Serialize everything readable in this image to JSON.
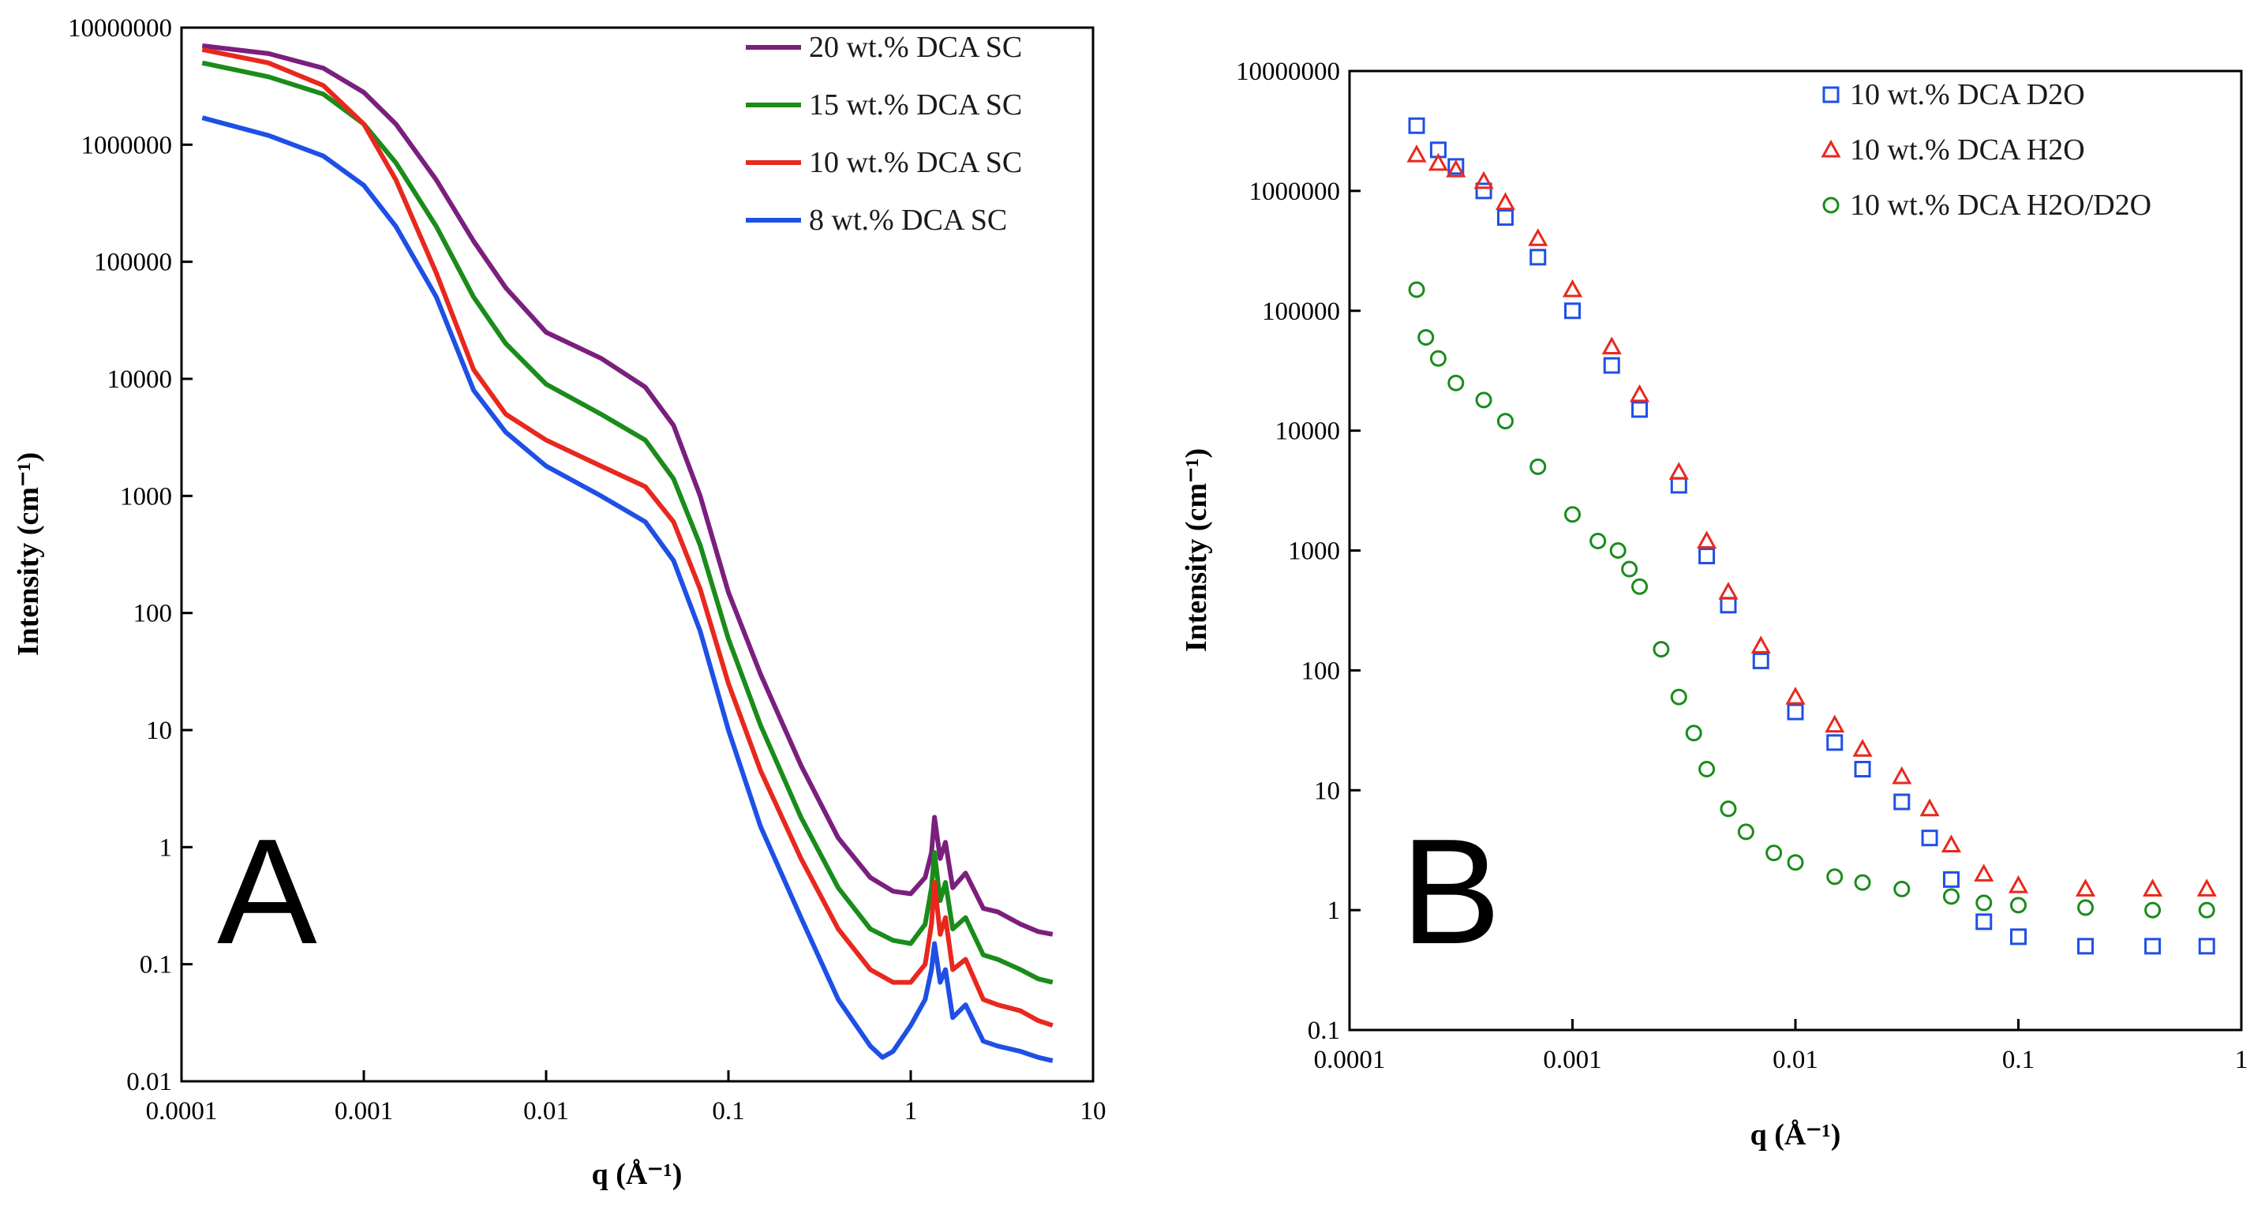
{
  "chart_data": [
    {
      "panel": "A",
      "type": "line",
      "xscale": "log",
      "yscale": "log",
      "xlim": [
        0.0001,
        10
      ],
      "ylim": [
        0.01,
        10000000
      ],
      "xticks": [
        "0.0001",
        "0.001",
        "0.01",
        "0.1",
        "1",
        "10"
      ],
      "yticks": [
        "0.01",
        "0.1",
        "1",
        "10",
        "100",
        "1000",
        "10000",
        "100000",
        "1000000",
        "10000000"
      ],
      "xlabel": "q (Å⁻¹)",
      "ylabel": "Intensity (cm⁻¹)",
      "legend_position": "top-right",
      "series": [
        {
          "name": "20 wt.% DCA SC",
          "color": "#7b1f7e",
          "x": [
            0.00013,
            0.0003,
            0.0006,
            0.001,
            0.0015,
            0.0025,
            0.004,
            0.006,
            0.01,
            0.02,
            0.035,
            0.05,
            0.07,
            0.1,
            0.15,
            0.25,
            0.4,
            0.6,
            0.8,
            1.0,
            1.2,
            1.3,
            1.35,
            1.45,
            1.55,
            1.7,
            2.0,
            2.5,
            3.0,
            4.0,
            5.0,
            6.0
          ],
          "y": [
            7000000,
            6000000,
            4500000,
            2800000,
            1500000,
            500000,
            150000,
            60000,
            25000,
            15000,
            8500,
            4000,
            1000,
            150,
            30,
            5,
            1.2,
            0.55,
            0.42,
            0.4,
            0.55,
            0.9,
            1.8,
            0.8,
            1.1,
            0.45,
            0.6,
            0.3,
            0.28,
            0.22,
            0.19,
            0.18
          ]
        },
        {
          "name": "15 wt.% DCA SC",
          "color": "#1a8c1a",
          "x": [
            0.00013,
            0.0003,
            0.0006,
            0.001,
            0.0015,
            0.0025,
            0.004,
            0.006,
            0.01,
            0.02,
            0.035,
            0.05,
            0.07,
            0.1,
            0.15,
            0.25,
            0.4,
            0.6,
            0.8,
            1.0,
            1.2,
            1.3,
            1.35,
            1.45,
            1.55,
            1.7,
            2.0,
            2.5,
            3.0,
            4.0,
            5.0,
            6.0
          ],
          "y": [
            5000000,
            3800000,
            2700000,
            1500000,
            700000,
            200000,
            50000,
            20000,
            9000,
            5000,
            3000,
            1400,
            380,
            60,
            11,
            1.8,
            0.45,
            0.2,
            0.16,
            0.15,
            0.22,
            0.45,
            0.9,
            0.35,
            0.5,
            0.2,
            0.25,
            0.12,
            0.11,
            0.09,
            0.075,
            0.07
          ]
        },
        {
          "name": "10 wt.% DCA SC",
          "color": "#e8281e",
          "x": [
            0.00013,
            0.0003,
            0.0006,
            0.001,
            0.0015,
            0.0025,
            0.004,
            0.006,
            0.01,
            0.02,
            0.035,
            0.05,
            0.07,
            0.1,
            0.15,
            0.25,
            0.4,
            0.6,
            0.8,
            1.0,
            1.2,
            1.3,
            1.35,
            1.45,
            1.55,
            1.7,
            2.0,
            2.5,
            3.0,
            4.0,
            5.0,
            6.0
          ],
          "y": [
            6500000,
            5000000,
            3200000,
            1500000,
            500000,
            80000,
            12000,
            5000,
            3000,
            1800,
            1200,
            600,
            160,
            25,
            4.5,
            0.8,
            0.2,
            0.09,
            0.07,
            0.07,
            0.1,
            0.22,
            0.5,
            0.18,
            0.25,
            0.09,
            0.11,
            0.05,
            0.045,
            0.04,
            0.033,
            0.03
          ]
        },
        {
          "name": "8 wt.% DCA SC",
          "color": "#1e50e6",
          "x": [
            0.00013,
            0.0003,
            0.0006,
            0.001,
            0.0015,
            0.0025,
            0.004,
            0.006,
            0.01,
            0.02,
            0.035,
            0.05,
            0.07,
            0.1,
            0.15,
            0.25,
            0.4,
            0.6,
            0.7,
            0.8,
            1.0,
            1.2,
            1.3,
            1.35,
            1.45,
            1.55,
            1.7,
            2.0,
            2.5,
            3.0,
            4.0,
            5.0,
            6.0
          ],
          "y": [
            1700000,
            1200000,
            800000,
            450000,
            200000,
            50000,
            8000,
            3500,
            1800,
            1000,
            600,
            280,
            70,
            10,
            1.5,
            0.25,
            0.05,
            0.02,
            0.016,
            0.018,
            0.03,
            0.05,
            0.09,
            0.15,
            0.07,
            0.09,
            0.035,
            0.045,
            0.022,
            0.02,
            0.018,
            0.016,
            0.015
          ]
        }
      ]
    },
    {
      "panel": "B",
      "type": "scatter",
      "xscale": "log",
      "yscale": "log",
      "xlim": [
        0.0001,
        1
      ],
      "ylim": [
        0.1,
        10000000
      ],
      "xticks": [
        "0.0001",
        "0.001",
        "0.01",
        "0.1",
        "1"
      ],
      "yticks": [
        "0.1",
        "1",
        "10",
        "100",
        "1000",
        "10000",
        "100000",
        "1000000",
        "10000000"
      ],
      "xlabel": "q (Å⁻¹)",
      "ylabel": "Intensity (cm⁻¹)",
      "legend_position": "top-right",
      "series": [
        {
          "name": "10 wt.% DCA D2O",
          "color": "#1e50e6",
          "marker": "square",
          "x": [
            0.0002,
            0.00025,
            0.0003,
            0.0004,
            0.0005,
            0.0007,
            0.001,
            0.0015,
            0.002,
            0.003,
            0.004,
            0.005,
            0.007,
            0.01,
            0.015,
            0.02,
            0.03,
            0.04,
            0.05,
            0.07,
            0.1,
            0.2,
            0.4,
            0.7
          ],
          "y": [
            3500000,
            2200000,
            1600000,
            1000000,
            600000,
            280000,
            100000,
            35000,
            15000,
            3500,
            900,
            350,
            120,
            45,
            25,
            15,
            8,
            4,
            1.8,
            0.8,
            0.6,
            0.5,
            0.5,
            0.5
          ]
        },
        {
          "name": "10 wt.% DCA H2O",
          "color": "#e8281e",
          "marker": "triangle",
          "x": [
            0.0002,
            0.00025,
            0.0003,
            0.0004,
            0.0005,
            0.0007,
            0.001,
            0.0015,
            0.002,
            0.003,
            0.004,
            0.005,
            0.007,
            0.01,
            0.015,
            0.02,
            0.03,
            0.04,
            0.05,
            0.07,
            0.1,
            0.2,
            0.4,
            0.7
          ],
          "y": [
            2000000,
            1700000,
            1500000,
            1200000,
            800000,
            400000,
            150000,
            50000,
            20000,
            4500,
            1200,
            450,
            160,
            60,
            35,
            22,
            13,
            7,
            3.5,
            2,
            1.6,
            1.5,
            1.5,
            1.5
          ]
        },
        {
          "name": "10 wt.% DCA H2O/D2O",
          "color": "#1a8c1a",
          "marker": "circle",
          "x": [
            0.0002,
            0.00022,
            0.00025,
            0.0003,
            0.0004,
            0.0005,
            0.0007,
            0.001,
            0.0013,
            0.0016,
            0.0018,
            0.002,
            0.0025,
            0.003,
            0.0035,
            0.004,
            0.005,
            0.006,
            0.008,
            0.01,
            0.015,
            0.02,
            0.03,
            0.05,
            0.07,
            0.1,
            0.2,
            0.4,
            0.7
          ],
          "y": [
            150000,
            60000,
            40000,
            25000,
            18000,
            12000,
            5000,
            2000,
            1200,
            1000,
            700,
            500,
            150,
            60,
            30,
            15,
            7,
            4.5,
            3,
            2.5,
            1.9,
            1.7,
            1.5,
            1.3,
            1.15,
            1.1,
            1.05,
            1.0,
            1.0
          ]
        }
      ]
    }
  ]
}
